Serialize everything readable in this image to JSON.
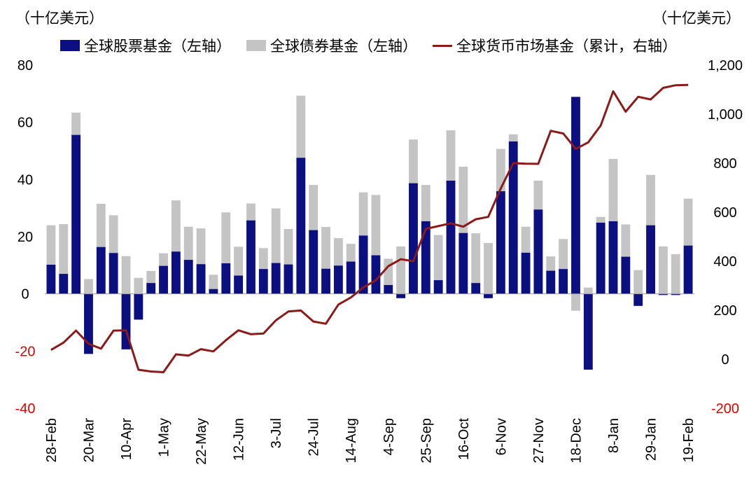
{
  "chart_data": {
    "type": "bar",
    "units": {
      "left": "（十亿美元）",
      "right": "（十亿美元）"
    },
    "colors": {
      "equity": "#0b0f80",
      "bond": "#c4c4c4",
      "money": "#8b1a1a",
      "negative_tick": "#e00000"
    },
    "left_axis": {
      "ylim": [
        -40,
        80
      ],
      "ticks": [
        "80",
        "60",
        "40",
        "20",
        "0",
        "-20",
        "-40"
      ]
    },
    "right_axis": {
      "ylim": [
        -200,
        1200
      ],
      "ticks": [
        "1,200",
        "1,000",
        "800",
        "600",
        "400",
        "200",
        "0",
        "-200"
      ]
    },
    "x_tick_labels": [
      "28-Feb",
      "20-Mar",
      "10-Apr",
      "1-May",
      "22-May",
      "12-Jun",
      "3-Jul",
      "24-Jul",
      "14-Aug",
      "4-Sep",
      "25-Sep",
      "16-Oct",
      "6-Nov",
      "27-Nov",
      "18-Dec",
      "8-Jan",
      "29-Jan",
      "19-Feb"
    ],
    "series": [
      {
        "name": "全球股票基金（左轴）",
        "kind": "bar",
        "axis": "left",
        "values": [
          10.2,
          7.0,
          55.6,
          -21.0,
          16.4,
          14.3,
          -19.4,
          -9.0,
          3.8,
          9.8,
          14.8,
          11.9,
          10.4,
          1.7,
          10.7,
          6.4,
          25.7,
          8.7,
          10.8,
          10.3,
          47.6,
          22.3,
          8.8,
          9.9,
          11.3,
          20.4,
          13.5,
          3.1,
          -1.5,
          38.7,
          25.4,
          4.8,
          39.6,
          21.3,
          3.8,
          -1.5,
          35.9,
          53.3,
          14.4,
          29.5,
          8.1,
          8.7,
          68.9,
          -26.5,
          24.9,
          25.4,
          13.0,
          -4.2,
          24.0,
          -0.4,
          -0.4,
          16.9
        ]
      },
      {
        "name": "全球债券基金（左轴）",
        "kind": "bar",
        "axis": "left",
        "values": [
          13.8,
          17.4,
          7.8,
          5.2,
          15.1,
          13.2,
          13.2,
          5.6,
          4.2,
          4.4,
          17.9,
          11.6,
          12.5,
          5.0,
          17.8,
          10.1,
          5.9,
          7.3,
          19.1,
          12.4,
          21.7,
          15.8,
          14.6,
          9.6,
          6.2,
          15.1,
          21.1,
          9.2,
          16.6,
          15.3,
          12.7,
          15.8,
          17.6,
          23.2,
          17.4,
          17.8,
          14.8,
          2.5,
          9.1,
          10.1,
          5.0,
          10.5,
          -5.9,
          2.2,
          2.0,
          21.8,
          11.3,
          8.3,
          17.6,
          16.6,
          13.9,
          16.4
        ]
      },
      {
        "name": "全球货币市场基金（累计，右轴）",
        "kind": "line",
        "axis": "right",
        "values": [
          38,
          68,
          117,
          63,
          43,
          117,
          118,
          -43,
          -50,
          -53,
          20,
          15,
          41,
          32,
          78,
          118,
          102,
          105,
          159,
          195,
          199,
          154,
          145,
          223,
          252,
          293,
          322,
          380,
          408,
          400,
          532,
          543,
          555,
          541,
          571,
          581,
          697,
          800,
          798,
          797,
          932,
          921,
          858,
          885,
          954,
          1093,
          1010,
          1071,
          1060,
          1107,
          1118,
          1119
        ]
      }
    ]
  }
}
